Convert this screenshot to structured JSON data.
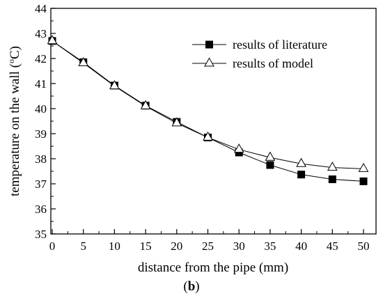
{
  "chart_data": {
    "type": "line",
    "x": [
      0,
      5,
      10,
      15,
      20,
      25,
      30,
      35,
      40,
      45,
      50
    ],
    "xlim": [
      0,
      52
    ],
    "ylim": [
      35,
      44
    ],
    "xticks": [
      "0",
      "5",
      "10",
      "15",
      "20",
      "25",
      "30",
      "35",
      "40",
      "45",
      "50"
    ],
    "yticks": [
      "35",
      "36",
      "37",
      "38",
      "39",
      "40",
      "41",
      "42",
      "43",
      "44"
    ],
    "xlabel": "distance from the pipe (mm)",
    "ylabel_main": "temperature on the wall (",
    "ylabel_sup": "o",
    "ylabel_end": "C)",
    "caption": {
      "open": "(",
      "bold": "b",
      "close": ")"
    },
    "legend_position": "top-right",
    "grid": false,
    "series": [
      {
        "name": "results of literature",
        "marker": "square",
        "values": [
          42.7,
          41.85,
          40.92,
          40.12,
          39.47,
          38.85,
          38.25,
          37.75,
          37.37,
          37.18,
          37.1
        ]
      },
      {
        "name": "results of model",
        "marker": "triangle",
        "values": [
          42.7,
          41.82,
          40.9,
          40.1,
          39.42,
          38.85,
          38.37,
          38.05,
          37.8,
          37.65,
          37.6
        ]
      }
    ]
  },
  "colors": {
    "line": "#000000",
    "square_fill": "#000000",
    "triangle_fill": "#ffffff"
  }
}
